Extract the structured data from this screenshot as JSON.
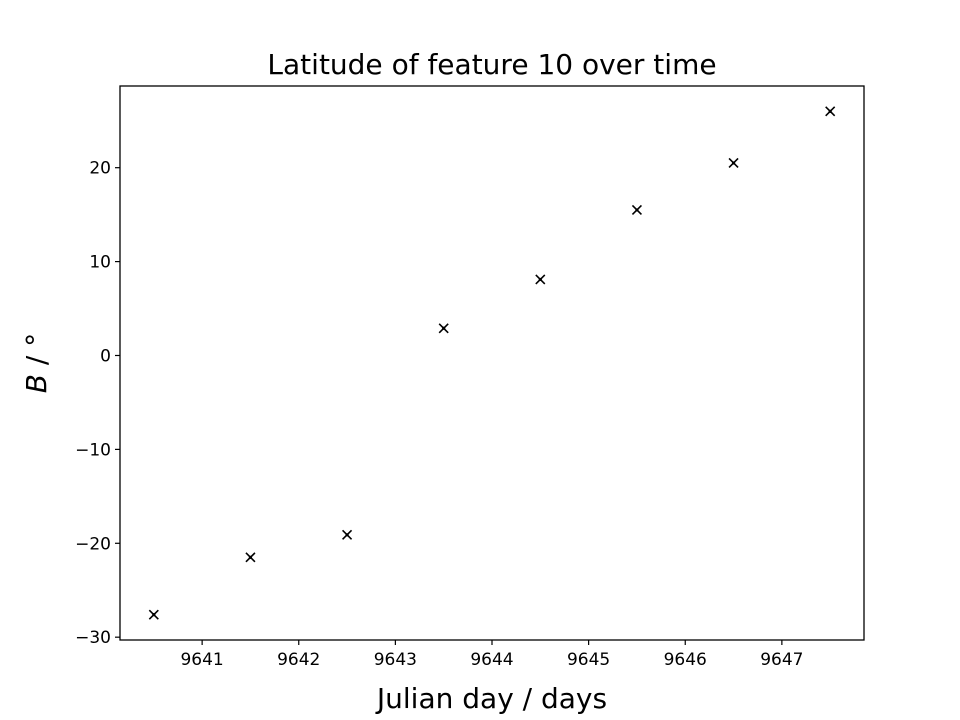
{
  "chart_data": {
    "type": "scatter",
    "title": "Latitude of feature 10 over time",
    "xlabel": "Julian day / days",
    "ylabel_var": "B",
    "ylabel_rest": " / °",
    "marker": "x",
    "xlim": [
      9640.15,
      9647.85
    ],
    "ylim": [
      -30.3,
      28.7
    ],
    "xticks": [
      9641,
      9642,
      9643,
      9644,
      9645,
      9646,
      9647
    ],
    "yticks": [
      -30,
      -20,
      -10,
      0,
      10,
      20
    ],
    "xtick_labels": [
      "9641",
      "9642",
      "9643",
      "9644",
      "9645",
      "9646",
      "9647"
    ],
    "ytick_labels": [
      "−30",
      "−20",
      "−10",
      "0",
      "10",
      "20"
    ],
    "series": [
      {
        "x": [
          9640.5,
          9641.5,
          9642.5,
          9643.5,
          9644.5,
          9645.5,
          9646.5,
          9647.5
        ],
        "y": [
          -27.6,
          -21.5,
          -19.1,
          2.9,
          8.1,
          15.5,
          20.5,
          26.0
        ]
      }
    ],
    "marker_color": "#000000",
    "grid": false
  }
}
